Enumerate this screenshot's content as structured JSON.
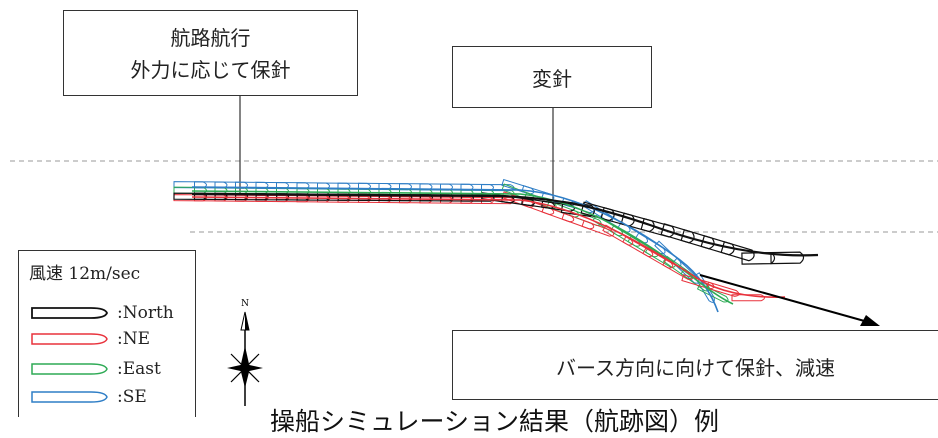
{
  "callouts": {
    "route_line1": "航路航行",
    "route_line2": "外力に応じて保針",
    "turn": "変針",
    "berth": "バース方向に向けて保針、減速"
  },
  "legend": {
    "title": "風速 12m/sec",
    "items": [
      {
        "label": ":North",
        "color": "#111111"
      },
      {
        "label": ":NE",
        "color": "#e8323c"
      },
      {
        "label": ":East",
        "color": "#2eaa55"
      },
      {
        "label": ":SE",
        "color": "#2f7ec6"
      }
    ]
  },
  "compass": {
    "north_label": "N"
  },
  "caption": "操船シミュレーション結果（航跡図）例"
}
